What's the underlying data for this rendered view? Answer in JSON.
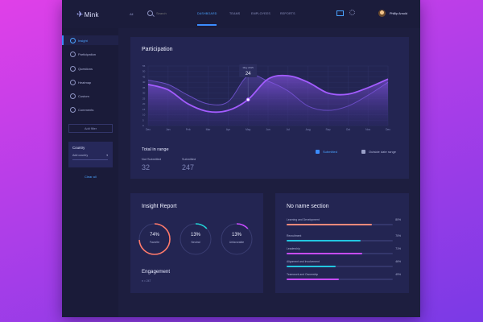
{
  "app": {
    "logo": "Mink"
  },
  "topbar": {
    "all_label": "All",
    "search_placeholder": "Search",
    "nav": [
      "DASHBOARD",
      "TEAMS",
      "EMPLOYEES",
      "REPORTS"
    ],
    "user_name": "Phillip Arnold"
  },
  "sidebar": {
    "items": [
      "Insight",
      "Participation",
      "Questions",
      "Heatmap",
      "Custom",
      "Comments"
    ],
    "add_filter": "Add filter",
    "country_title": "Country",
    "country_value": "Add country",
    "clear_all": "Clear all"
  },
  "participation": {
    "title": "Participation",
    "tooltip_label": "May 2015",
    "tooltip_value": "24",
    "total_title": "Total in range",
    "legend_submitted": "Submitted",
    "legend_outside": "Outside date range",
    "stats": [
      {
        "label": "Not Submitted",
        "value": "32"
      },
      {
        "label": "Submitted",
        "value": "247"
      }
    ]
  },
  "chart_data": {
    "type": "area",
    "categories": [
      "Dec",
      "Jan",
      "Feb",
      "Mar",
      "Apr",
      "May",
      "Jun",
      "Jul",
      "Aug",
      "Sep",
      "Oct",
      "Nov",
      "Dec"
    ],
    "ylim": [
      0,
      55
    ],
    "yticks": [
      0,
      5,
      10,
      15,
      20,
      25,
      30,
      35,
      40,
      45,
      50,
      55
    ],
    "series": [
      {
        "name": "Submitted",
        "values": [
          38,
          33,
          20,
          13,
          14,
          24,
          43,
          46,
          40,
          30,
          29,
          35,
          43
        ]
      },
      {
        "name": "Outside date range",
        "values": [
          42,
          38,
          28,
          20,
          22,
          46,
          41,
          32,
          18,
          14,
          18,
          28,
          40
        ]
      }
    ],
    "colors": [
      "#a35cff",
      "#6a4fc4"
    ],
    "grid": true
  },
  "insight": {
    "title": "Insight Report",
    "rings": [
      {
        "pct": 74,
        "label": "Favorite",
        "color": "#ff7a6b"
      },
      {
        "pct": 13,
        "label": "Neutral",
        "color": "#22d3d6"
      },
      {
        "pct": 13,
        "label": "Unfavorable",
        "color": "#c64cff"
      }
    ],
    "pct_texts": [
      "74%",
      "13%",
      "13%"
    ],
    "engagement_title": "Engagement",
    "engagement_sub": "n = 247"
  },
  "noname": {
    "title": "No name section",
    "bars": [
      {
        "label": "Learning and Development",
        "pct": 80,
        "pct_text": "80%",
        "color": "#ff8a7a"
      },
      {
        "label": "Recruitment",
        "pct": 70,
        "pct_text": "70%",
        "color": "#22c6e0"
      },
      {
        "label": "Leadership",
        "pct": 71,
        "pct_text": "71%",
        "color": "#c64cff"
      },
      {
        "label": "Alignment and Involvement",
        "pct": 46,
        "pct_text": "46%",
        "color": "#22c6e0"
      },
      {
        "label": "Teamwork and Ownership",
        "pct": 49,
        "pct_text": "49%",
        "color": "#c64cff"
      }
    ]
  }
}
